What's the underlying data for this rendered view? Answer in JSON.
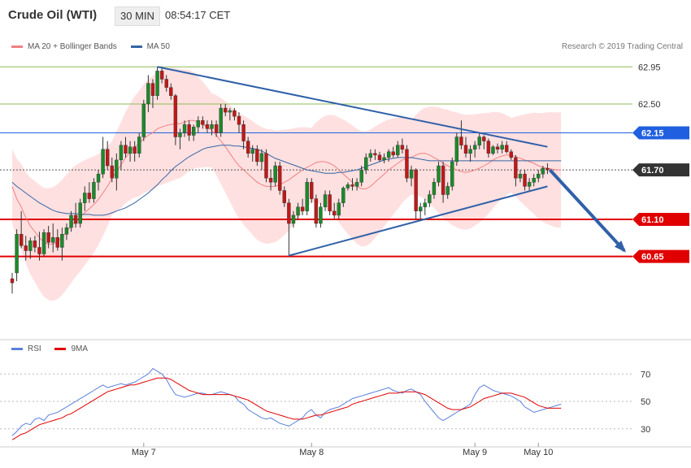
{
  "header": {
    "title": "Crude Oil (WTI)",
    "interval": "30 MIN",
    "time": "08:54:17 CET"
  },
  "legend": {
    "items": [
      {
        "label": "MA 20 + Bollinger Bands",
        "color": "#f08080"
      },
      {
        "label": "MA 50",
        "color": "#3465a4"
      }
    ]
  },
  "copyright": "Research © 2019 Trading Central",
  "rsi_legend": {
    "items": [
      {
        "label": "RSI",
        "color": "#5b7fdc"
      },
      {
        "label": "9MA",
        "color": "#e00000"
      }
    ]
  },
  "colors": {
    "support": "#e00000",
    "resistance_green": "#8fbc54",
    "pivot_blue": "#2060e0",
    "trend": "#3060a8",
    "band_fill": "#ffe0e0",
    "up_candle": "#1a8a2a",
    "down_candle": "#c01818"
  },
  "chart_data": [
    {
      "type": "candlestick",
      "ylim": [
        59.7,
        63.15
      ],
      "levels": [
        {
          "value": 62.95,
          "label": "62.95",
          "kind": "resistance"
        },
        {
          "value": 62.5,
          "label": "62.50",
          "kind": "resistance"
        },
        {
          "value": 62.15,
          "label": "62.15",
          "kind": "pivot"
        },
        {
          "value": 61.7,
          "label": "61.70",
          "kind": "last"
        },
        {
          "value": 61.1,
          "label": "61.10",
          "kind": "support"
        },
        {
          "value": 60.65,
          "label": "60.65",
          "kind": "support"
        }
      ],
      "x_ticks": [
        "May 7",
        "May 8",
        "May 9",
        "May 10"
      ],
      "x_tick_index": [
        29,
        66,
        102,
        116
      ],
      "candles": [
        [
          60.38,
          60.45,
          60.2,
          60.33
        ],
        [
          60.45,
          60.98,
          60.35,
          60.92
        ],
        [
          60.92,
          61.2,
          60.75,
          60.78
        ],
        [
          60.78,
          60.9,
          60.6,
          60.72
        ],
        [
          60.72,
          60.88,
          60.62,
          60.84
        ],
        [
          60.84,
          60.9,
          60.7,
          60.76
        ],
        [
          60.76,
          60.95,
          60.6,
          60.68
        ],
        [
          60.68,
          60.98,
          60.65,
          60.94
        ],
        [
          60.94,
          61.02,
          60.75,
          60.82
        ],
        [
          60.82,
          61.05,
          60.7,
          60.88
        ],
        [
          60.88,
          60.98,
          60.72,
          60.76
        ],
        [
          60.76,
          61.0,
          60.6,
          60.92
        ],
        [
          60.92,
          61.05,
          60.85,
          61.0
        ],
        [
          61.0,
          61.2,
          60.95,
          61.15
        ],
        [
          61.15,
          61.3,
          61.0,
          61.05
        ],
        [
          61.05,
          61.35,
          61.0,
          61.3
        ],
        [
          61.3,
          61.5,
          61.2,
          61.42
        ],
        [
          61.42,
          61.55,
          61.3,
          61.35
        ],
        [
          61.35,
          61.6,
          61.3,
          61.55
        ],
        [
          61.55,
          61.7,
          61.45,
          61.65
        ],
        [
          61.65,
          62.1,
          61.6,
          61.95
        ],
        [
          61.95,
          62.05,
          61.7,
          61.75
        ],
        [
          61.75,
          61.85,
          61.55,
          61.6
        ],
        [
          61.6,
          61.9,
          61.45,
          61.82
        ],
        [
          61.82,
          62.05,
          61.7,
          62.0
        ],
        [
          62.0,
          62.1,
          61.85,
          61.9
        ],
        [
          61.9,
          62.05,
          61.8,
          61.98
        ],
        [
          61.98,
          62.05,
          61.8,
          61.9
        ],
        [
          61.9,
          62.15,
          61.85,
          62.1
        ],
        [
          62.1,
          62.55,
          62.05,
          62.5
        ],
        [
          62.5,
          62.85,
          62.4,
          62.75
        ],
        [
          62.75,
          62.8,
          62.45,
          62.6
        ],
        [
          62.6,
          62.95,
          62.55,
          62.9
        ],
        [
          62.9,
          62.95,
          62.75,
          62.8
        ],
        [
          62.8,
          62.85,
          62.65,
          62.7
        ],
        [
          62.7,
          62.75,
          62.55,
          62.6
        ],
        [
          62.6,
          62.62,
          62.0,
          62.1
        ],
        [
          62.1,
          62.2,
          61.95,
          62.15
        ],
        [
          62.15,
          62.3,
          62.1,
          62.25
        ],
        [
          62.25,
          62.3,
          62.05,
          62.12
        ],
        [
          62.12,
          62.25,
          62.05,
          62.22
        ],
        [
          62.22,
          62.35,
          62.15,
          62.3
        ],
        [
          62.3,
          62.35,
          62.2,
          62.25
        ],
        [
          62.25,
          62.3,
          62.15,
          62.2
        ],
        [
          62.2,
          62.3,
          62.12,
          62.25
        ],
        [
          62.25,
          62.3,
          62.1,
          62.15
        ],
        [
          62.15,
          62.5,
          62.1,
          62.45
        ],
        [
          62.45,
          62.5,
          62.35,
          62.4
        ],
        [
          62.4,
          62.45,
          62.3,
          62.42
        ],
        [
          62.42,
          62.45,
          62.3,
          62.35
        ],
        [
          62.35,
          62.4,
          62.15,
          62.25
        ],
        [
          62.25,
          62.3,
          61.95,
          62.05
        ],
        [
          62.05,
          62.1,
          61.85,
          61.9
        ],
        [
          61.9,
          62.0,
          61.8,
          61.95
        ],
        [
          61.95,
          62.0,
          61.75,
          61.8
        ],
        [
          61.8,
          61.95,
          61.7,
          61.9
        ],
        [
          61.9,
          61.95,
          61.55,
          61.6
        ],
        [
          61.6,
          61.7,
          61.45,
          61.55
        ],
        [
          61.55,
          61.8,
          61.5,
          61.75
        ],
        [
          61.75,
          61.8,
          61.4,
          61.45
        ],
        [
          61.45,
          61.5,
          61.25,
          61.3
        ],
        [
          61.3,
          61.35,
          60.66,
          61.05
        ],
        [
          61.05,
          61.2,
          61.0,
          61.15
        ],
        [
          61.15,
          61.3,
          61.1,
          61.25
        ],
        [
          61.25,
          61.35,
          61.15,
          61.2
        ],
        [
          61.2,
          61.6,
          61.15,
          61.55
        ],
        [
          61.55,
          61.6,
          61.3,
          61.35
        ],
        [
          61.35,
          61.4,
          61.0,
          61.05
        ],
        [
          61.05,
          61.3,
          61.0,
          61.25
        ],
        [
          61.25,
          61.45,
          61.2,
          61.4
        ],
        [
          61.4,
          61.45,
          61.15,
          61.2
        ],
        [
          61.2,
          61.3,
          61.1,
          61.15
        ],
        [
          61.15,
          61.35,
          61.1,
          61.3
        ],
        [
          61.3,
          61.5,
          61.25,
          61.48
        ],
        [
          61.48,
          61.55,
          61.45,
          61.52
        ],
        [
          61.52,
          61.6,
          61.45,
          61.5
        ],
        [
          61.5,
          61.6,
          61.45,
          61.55
        ],
        [
          61.55,
          61.75,
          61.5,
          61.7
        ],
        [
          61.7,
          61.9,
          61.65,
          61.85
        ],
        [
          61.85,
          61.95,
          61.8,
          61.9
        ],
        [
          61.9,
          61.95,
          61.82,
          61.88
        ],
        [
          61.88,
          61.92,
          61.8,
          61.82
        ],
        [
          61.82,
          61.9,
          61.78,
          61.85
        ],
        [
          61.85,
          61.95,
          61.8,
          61.92
        ],
        [
          61.92,
          61.98,
          61.85,
          61.88
        ],
        [
          61.88,
          62.05,
          61.85,
          62.0
        ],
        [
          62.0,
          62.08,
          61.9,
          61.95
        ],
        [
          61.95,
          62.0,
          61.55,
          61.6
        ],
        [
          61.6,
          61.75,
          61.5,
          61.7
        ],
        [
          61.7,
          61.72,
          61.1,
          61.2
        ],
        [
          61.2,
          61.3,
          61.1,
          61.25
        ],
        [
          61.25,
          61.35,
          61.15,
          61.3
        ],
        [
          61.3,
          61.45,
          61.25,
          61.4
        ],
        [
          61.4,
          61.6,
          61.35,
          61.55
        ],
        [
          61.55,
          61.8,
          61.5,
          61.75
        ],
        [
          61.75,
          61.8,
          61.3,
          61.4
        ],
        [
          61.4,
          61.55,
          61.35,
          61.5
        ],
        [
          61.5,
          61.85,
          61.45,
          61.8
        ],
        [
          61.8,
          62.15,
          61.75,
          62.1
        ],
        [
          62.1,
          62.3,
          61.95,
          62.0
        ],
        [
          62.0,
          62.1,
          61.85,
          61.9
        ],
        [
          61.9,
          62.0,
          61.8,
          61.95
        ],
        [
          61.95,
          62.05,
          61.85,
          62.0
        ],
        [
          62.0,
          62.15,
          61.95,
          62.1
        ],
        [
          62.1,
          62.12,
          61.95,
          62.05
        ],
        [
          62.05,
          62.08,
          61.85,
          61.9
        ],
        [
          61.9,
          62.0,
          61.88,
          61.98
        ],
        [
          61.98,
          62.02,
          61.9,
          61.95
        ],
        [
          61.95,
          62.05,
          61.9,
          62.0
        ],
        [
          62.0,
          62.05,
          61.9,
          61.92
        ],
        [
          61.92,
          61.95,
          61.82,
          61.85
        ],
        [
          61.85,
          61.88,
          61.5,
          61.6
        ],
        [
          61.6,
          61.7,
          61.55,
          61.65
        ],
        [
          61.65,
          61.7,
          61.45,
          61.5
        ],
        [
          61.5,
          61.6,
          61.45,
          61.55
        ],
        [
          61.55,
          61.65,
          61.5,
          61.6
        ],
        [
          61.6,
          61.7,
          61.55,
          61.65
        ],
        [
          61.65,
          61.75,
          61.6,
          61.72
        ],
        [
          61.72,
          61.78,
          61.65,
          61.7
        ]
      ],
      "ma20": [
        61.5,
        61.35,
        61.25,
        61.12,
        61.02,
        60.95,
        60.88,
        60.82,
        60.8,
        60.8,
        60.83,
        60.88,
        60.95,
        61.02,
        61.08,
        61.13,
        61.18,
        61.23,
        61.28,
        61.34,
        61.42,
        61.5,
        61.6,
        61.68,
        61.76,
        61.85,
        61.92,
        61.98,
        62.02,
        62.08,
        62.12,
        62.15,
        62.2,
        62.22,
        62.24,
        62.25,
        62.26,
        62.26,
        62.28,
        62.3,
        62.3,
        62.28,
        62.25,
        62.22,
        62.18,
        62.12,
        62.05,
        61.98,
        61.9,
        61.82,
        61.75,
        61.7,
        61.65,
        61.6,
        61.55,
        61.52,
        61.5,
        61.5,
        61.5,
        61.52,
        61.55,
        61.58,
        61.62,
        61.66,
        61.7,
        61.73,
        61.76,
        61.79,
        61.8,
        61.8,
        61.78,
        61.75,
        61.7,
        61.65,
        61.6,
        61.55,
        61.5,
        61.47,
        61.47,
        61.5,
        61.55,
        61.6,
        61.65,
        61.7,
        61.74,
        61.78,
        61.82,
        61.84,
        61.85,
        61.88,
        61.9,
        61.9,
        61.88,
        61.85,
        61.82,
        61.78,
        61.75,
        61.72,
        61.7,
        61.68,
        61.67,
        61.68,
        61.7,
        61.72,
        61.75,
        61.78,
        61.82,
        61.85,
        61.87,
        61.88,
        61.88,
        61.86,
        61.84,
        61.82,
        61.8,
        61.78,
        61.75,
        61.73,
        61.72,
        61.71,
        61.7,
        61.7
      ],
      "ma50": [
        61.55,
        61.5,
        61.46,
        61.42,
        61.38,
        61.34,
        61.3,
        61.27,
        61.24,
        61.21,
        61.19,
        61.18,
        61.17,
        61.17,
        61.17,
        61.16,
        61.16,
        61.16,
        61.15,
        61.15,
        61.15,
        61.16,
        61.18,
        61.2,
        61.22,
        61.24,
        61.27,
        61.3,
        61.34,
        61.38,
        61.42,
        61.47,
        61.52,
        61.58,
        61.63,
        61.69,
        61.74,
        61.78,
        61.82,
        61.86,
        61.89,
        61.92,
        61.95,
        61.97,
        61.98,
        61.99,
        62.0,
        62.0,
        62.0,
        61.99,
        61.99,
        61.98,
        61.97,
        61.96,
        61.95,
        61.93,
        61.9,
        61.87,
        61.84,
        61.82,
        61.8,
        61.78,
        61.76,
        61.74,
        61.72,
        61.7,
        61.69,
        61.68,
        61.67,
        61.66,
        61.66,
        61.66,
        61.67,
        61.67,
        61.68,
        61.69,
        61.7,
        61.72,
        61.74,
        61.76,
        61.78,
        61.8,
        61.82,
        61.83,
        61.84,
        61.85,
        61.85,
        61.85,
        61.85,
        61.84,
        61.83,
        61.82,
        61.81,
        61.81,
        61.81,
        61.81,
        61.81,
        61.81,
        61.81,
        61.81,
        61.81,
        61.81,
        61.81,
        61.81,
        61.81,
        61.81,
        61.81,
        61.81,
        61.81,
        61.81,
        61.81,
        61.81,
        61.81,
        61.81,
        61.81,
        61.81,
        61.81,
        61.81,
        61.81,
        61.81,
        61.81,
        61.81
      ]
    },
    {
      "type": "line",
      "ylim": [
        18,
        82
      ],
      "y_ticks": [
        70,
        50,
        30
      ],
      "x_ticks": [
        "May 7",
        "May 8",
        "May 9",
        "May 10"
      ],
      "series": [
        {
          "name": "RSI",
          "values": [
            25,
            28,
            32,
            34,
            33,
            37,
            38,
            36,
            40,
            41,
            42,
            44,
            46,
            48,
            50,
            52,
            54,
            56,
            58,
            60,
            62,
            60,
            61,
            62,
            63,
            62,
            63,
            64,
            66,
            68,
            70,
            74,
            72,
            70,
            66,
            60,
            55,
            54,
            53,
            54,
            55,
            56,
            56,
            55,
            55,
            56,
            57,
            56,
            55,
            54,
            50,
            48,
            44,
            42,
            40,
            38,
            37,
            38,
            36,
            34,
            33,
            32,
            34,
            36,
            38,
            42,
            44,
            40,
            38,
            42,
            44,
            45,
            46,
            48,
            50,
            52,
            53,
            54,
            55,
            56,
            57,
            58,
            59,
            60,
            58,
            57,
            56,
            58,
            59,
            57,
            55,
            50,
            46,
            42,
            38,
            36,
            38,
            40,
            42,
            44,
            46,
            48,
            55,
            60,
            62,
            60,
            58,
            57,
            56,
            55,
            54,
            52,
            50,
            46,
            44,
            42,
            43,
            44,
            45,
            46,
            47,
            48
          ]
        },
        {
          "name": "9MA",
          "values": [
            22,
            24,
            26,
            27,
            29,
            31,
            33,
            34,
            35,
            36,
            37,
            38,
            40,
            41,
            43,
            45,
            47,
            49,
            51,
            53,
            55,
            57,
            58,
            59,
            60,
            61,
            62,
            62,
            63,
            64,
            65,
            66,
            67,
            67,
            67,
            66,
            64,
            62,
            60,
            58,
            57,
            56,
            55,
            55,
            55,
            55,
            55,
            55,
            55,
            54,
            53,
            52,
            51,
            49,
            47,
            45,
            43,
            42,
            41,
            40,
            39,
            38,
            37,
            37,
            37,
            38,
            39,
            40,
            40,
            41,
            42,
            43,
            44,
            45,
            46,
            48,
            49,
            50,
            51,
            52,
            53,
            54,
            55,
            56,
            56,
            56,
            57,
            57,
            57,
            57,
            56,
            55,
            53,
            51,
            49,
            47,
            45,
            44,
            44,
            44,
            45,
            46,
            48,
            50,
            52,
            53,
            54,
            55,
            56,
            56,
            56,
            55,
            54,
            53,
            51,
            49,
            47,
            46,
            45,
            45,
            45,
            45
          ]
        }
      ]
    }
  ]
}
